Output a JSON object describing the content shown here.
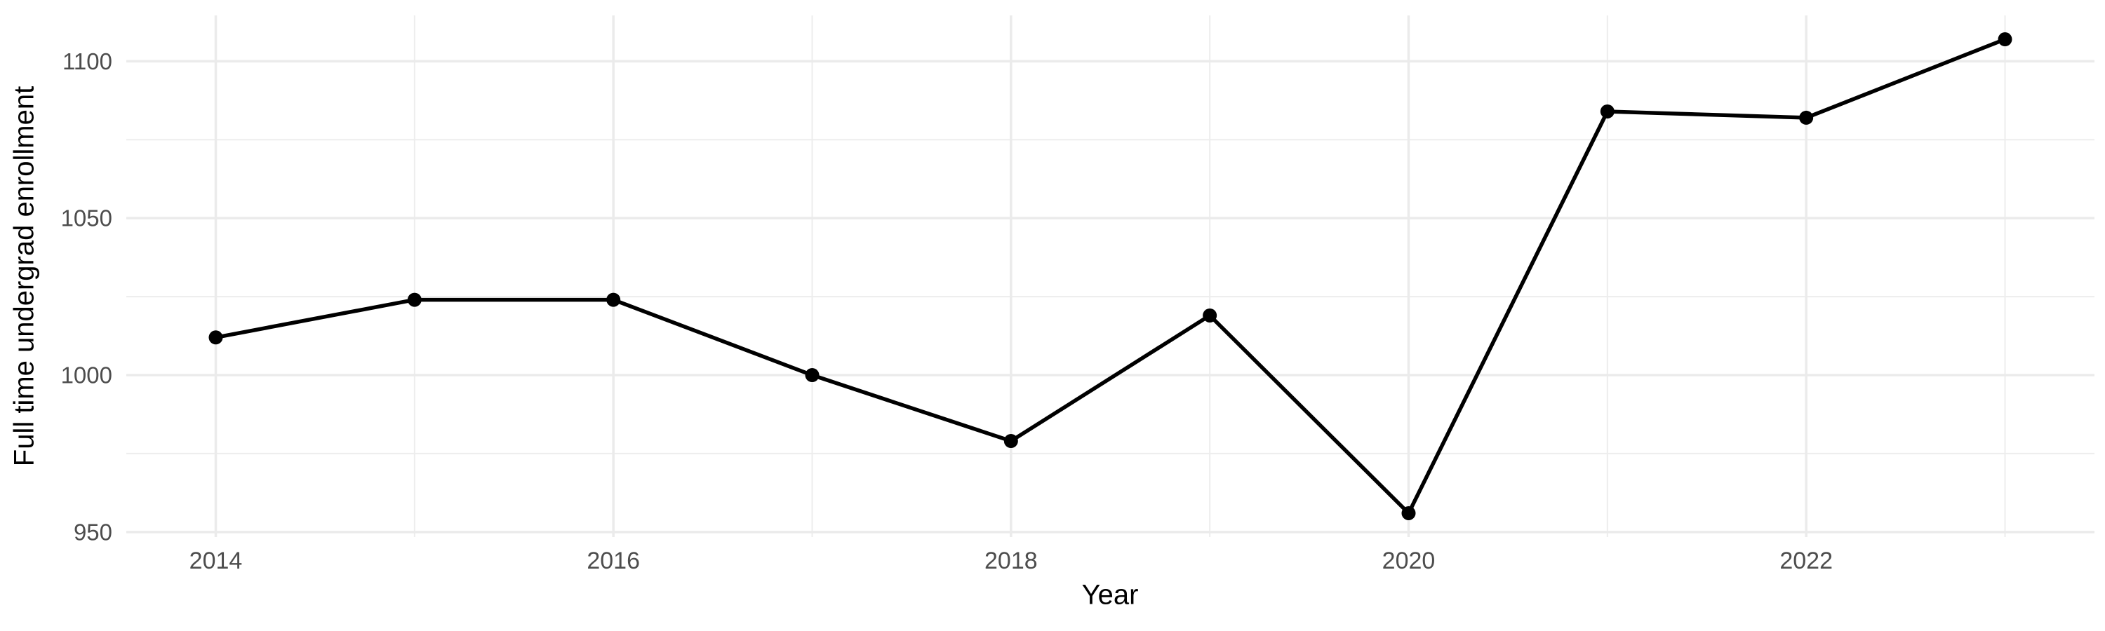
{
  "chart_data": {
    "type": "line",
    "title": "",
    "xlabel": "Year",
    "ylabel": "Full time undergrad enrollment",
    "x": [
      2014,
      2015,
      2016,
      2017,
      2018,
      2019,
      2020,
      2021,
      2022,
      2023
    ],
    "series": [
      {
        "name": "Full time undergrad enrollment",
        "values": [
          1012,
          1024,
          1024,
          1000,
          979,
          1019,
          956,
          1084,
          1082,
          1107
        ]
      }
    ],
    "x_ticks_major": [
      2014,
      2016,
      2018,
      2020,
      2022
    ],
    "x_ticks_minor": [
      2015,
      2017,
      2019,
      2021,
      2023
    ],
    "y_ticks_major": [
      950,
      1000,
      1050,
      1100
    ],
    "y_ticks_minor": [
      975,
      1025,
      1075
    ],
    "xlim": [
      2013.55,
      2023.45
    ],
    "ylim": [
      948.4,
      1114.6
    ],
    "grid": "major+minor",
    "legend": "none",
    "style": {
      "line_color": "#000000",
      "point_color": "#000000",
      "grid_major_color": "#EBEBEB",
      "grid_minor_color": "#EDEDED",
      "tick_label_color": "#4D4D4D",
      "axis_title_color": "#000000",
      "background": "#FFFFFF"
    }
  }
}
